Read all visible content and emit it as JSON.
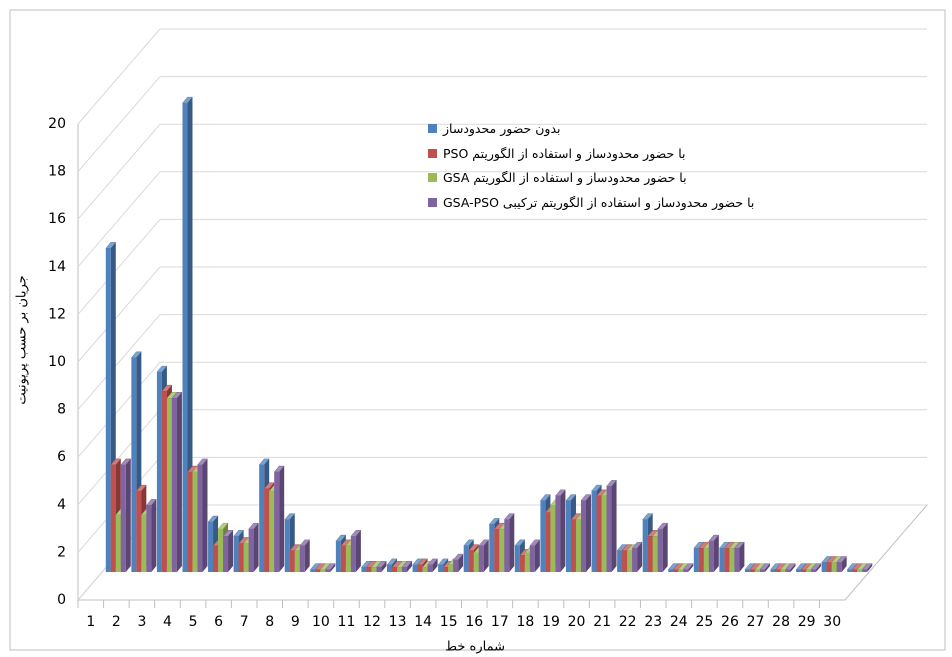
{
  "chart_data": {
    "type": "bar3d",
    "y_label": "جریان بر حسب پریونیت",
    "x_label": "شماره خط",
    "categories": [
      "1",
      "2",
      "3",
      "4",
      "5",
      "6",
      "7",
      "8",
      "9",
      "10",
      "11",
      "12",
      "13",
      "14",
      "15",
      "16",
      "17",
      "18",
      "19",
      "20",
      "21",
      "22",
      "23",
      "24",
      "25",
      "26",
      "27",
      "28",
      "29",
      "30"
    ],
    "series": [
      {
        "name": "بدون حضور محدودساز",
        "color": "#4f81bd",
        "values": [
          13.6,
          9.0,
          8.4,
          19.7,
          2.1,
          1.5,
          4.5,
          2.2,
          0.1,
          1.3,
          0.2,
          0.3,
          0.3,
          0.3,
          1.1,
          2.0,
          1.1,
          3.0,
          3.0,
          3.4,
          0.9,
          2.2,
          0.1,
          1.0,
          1.0,
          0.1,
          0.1,
          0.1,
          0.4,
          0.1
        ]
      },
      {
        "name": "با حضور محدودساز و استفاده از الگوریتم PSO",
        "color": "#c0504d",
        "values": [
          4.5,
          3.4,
          7.6,
          4.2,
          1.1,
          1.2,
          3.5,
          0.9,
          0.1,
          1.1,
          0.2,
          0.2,
          0.3,
          0.2,
          0.9,
          1.8,
          0.7,
          2.5,
          2.2,
          3.2,
          0.9,
          1.5,
          0.1,
          1.0,
          1.0,
          0.1,
          0.1,
          0.1,
          0.4,
          0.1
        ]
      },
      {
        "name": "با حضور محدودساز و استفاده از الگوریتم GSA",
        "color": "#9bbb59",
        "values": [
          2.4,
          2.4,
          7.3,
          4.2,
          1.8,
          1.2,
          3.4,
          0.9,
          0.1,
          1.1,
          0.2,
          0.2,
          0.2,
          0.3,
          0.8,
          1.8,
          0.8,
          2.8,
          2.2,
          3.2,
          0.9,
          1.5,
          0.1,
          1.0,
          1.0,
          0.1,
          0.1,
          0.1,
          0.4,
          0.1
        ]
      },
      {
        "name": "با حضور محدودساز و استفاده از الگوریتم ترکیبی GSA-PSO",
        "color": "#8064a2",
        "values": [
          4.5,
          2.8,
          7.3,
          4.5,
          1.5,
          1.8,
          4.2,
          1.1,
          0.1,
          1.5,
          0.2,
          0.2,
          0.3,
          0.5,
          1.1,
          2.2,
          1.1,
          3.2,
          3.0,
          3.6,
          1.0,
          1.8,
          0.1,
          1.3,
          1.0,
          0.1,
          0.1,
          0.1,
          0.4,
          0.1
        ]
      }
    ],
    "ylim": [
      0,
      20
    ],
    "yticks": [
      0,
      2,
      4,
      6,
      8,
      10,
      12,
      14,
      16,
      18,
      20
    ],
    "grid": true
  }
}
